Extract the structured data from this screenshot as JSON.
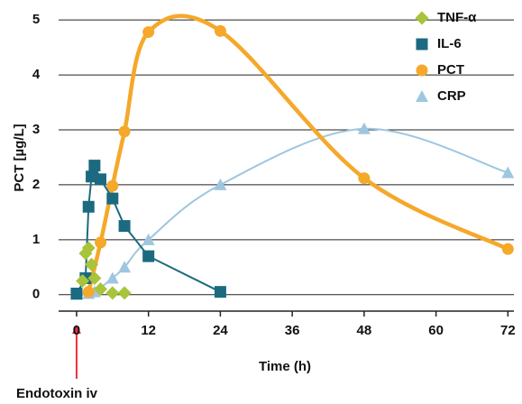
{
  "chart_data": {
    "type": "line",
    "x_label": "Time (h)",
    "y_label": "PCT [µg/L]",
    "annotation": "Endotoxin iv",
    "annotation_color": "#e8323c",
    "xlim": [
      -3,
      73
    ],
    "xticks": [
      0,
      12,
      24,
      36,
      48,
      60,
      72
    ],
    "ylim": [
      -0.3,
      5.2
    ],
    "yticks": [
      0,
      1,
      2,
      3,
      4,
      5
    ],
    "grid": true,
    "legend": "top-right",
    "series": [
      {
        "name": "TNF-α",
        "color": "#a8c43a",
        "marker": "diamond",
        "smooth": false,
        "line": false,
        "x": [
          1,
          1.5,
          2,
          2.5,
          3,
          4,
          6,
          8
        ],
        "values": [
          0.25,
          0.75,
          0.85,
          0.55,
          0.3,
          0.1,
          0.03,
          0.03
        ]
      },
      {
        "name": "IL-6",
        "color": "#1b6a80",
        "marker": "square",
        "smooth": false,
        "line": true,
        "x": [
          0,
          1.5,
          2,
          2.5,
          3,
          4,
          6,
          8,
          12,
          24
        ],
        "values": [
          0.02,
          0.3,
          1.6,
          2.15,
          2.35,
          2.1,
          1.75,
          1.25,
          0.7,
          0.05
        ]
      },
      {
        "name": "PCT",
        "color": "#f5a82a",
        "marker": "circle",
        "smooth": true,
        "line": true,
        "x": [
          2,
          4,
          6,
          8,
          12,
          24,
          48,
          72
        ],
        "values": [
          0.05,
          0.95,
          1.98,
          2.97,
          4.78,
          4.8,
          2.12,
          0.83
        ]
      },
      {
        "name": "CRP",
        "color": "#9fc6e0",
        "marker": "triangle",
        "smooth": true,
        "line": true,
        "x": [
          0,
          2,
          3,
          6,
          8,
          12,
          24,
          48,
          72
        ],
        "values": [
          0.0,
          0.02,
          0.05,
          0.3,
          0.5,
          1.0,
          2.0,
          3.02,
          2.22
        ]
      }
    ]
  }
}
